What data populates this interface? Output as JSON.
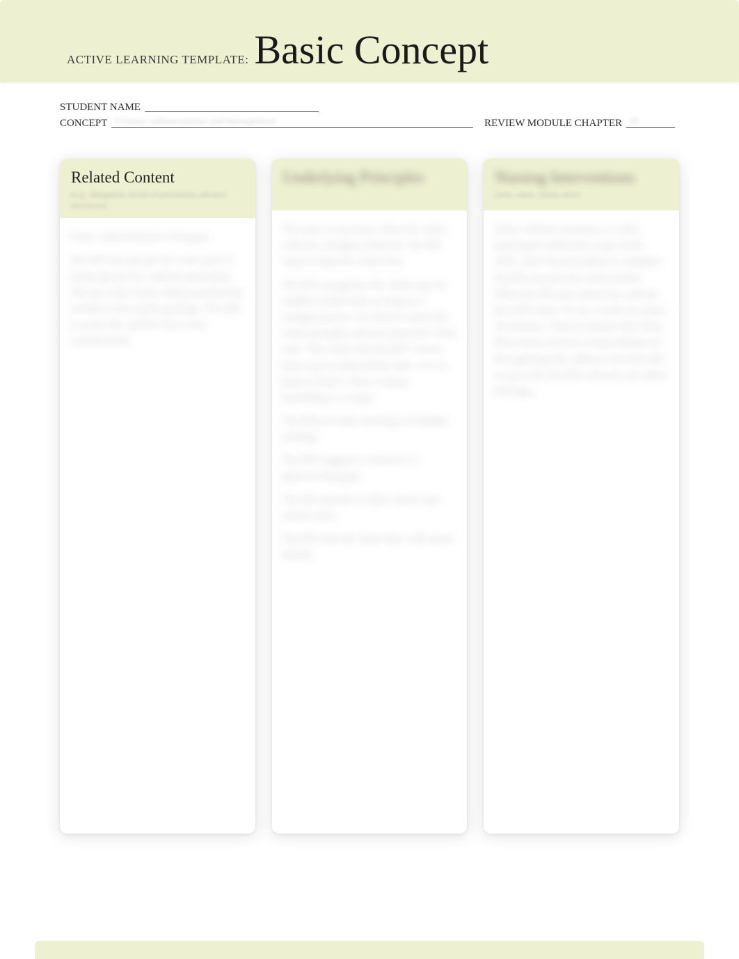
{
  "colors": {
    "band": "#eef0d2",
    "text": "#1a1a1a",
    "muted": "#3a3a3a",
    "line": "#444444",
    "card_bg": "#ffffff",
    "blur_text": "rgba(40,40,50,0.25)"
  },
  "header": {
    "prefix": "ACTIVE LEARNING TEMPLATE:",
    "title": "Basic Concept"
  },
  "meta": {
    "student_label": "STUDENT NAME",
    "student_value": "",
    "concept_label": "CONCEPT",
    "concept_value": "Urinary catheterization and management",
    "chapter_label": "REVIEW MODULE CHAPTER",
    "chapter_value": "45"
  },
  "cards": [
    {
      "title": "Related Content",
      "title_blurred": false,
      "subtitle": "(e.g., delegation, levels of prevention, advance directives)",
      "body": [
        "Foley catheterization technique.",
        "The RN has just put on a new pair of sterile gloves for catheter placement. The tip of the Foley tubing touched the outside of the sterile package. The RN is aware the catheter tip is now contaminated."
      ]
    },
    {
      "title": "Underlying Principles",
      "title_blurred": true,
      "subtitle": "",
      "body": [
        "The unit is very busy when the client calls for a bedpan; however, the RN stops to help the client first.",
        "The RN recognizes the client may be unable to hold urine as long as a younger person. It is best to assist the client promptly and not make the client wait. The client tells the RN 'I never had to go so often before this. It is so hard to hold it. Does it mean something is wrong?'",
        "The RN provides teaching on bladder training.",
        "The RN suggests a referral to a physical therapist.",
        "The RN attends to other clients and returns later.",
        "The RN tells the client they will return shortly."
      ]
    },
    {
      "title": "Nursing Interventions",
      "title_blurred": true,
      "subtitle": "(who, when, where, how)",
      "body": [
        "Foley catheter insertion is a skill performed within the scope of the LPN. After the procedure is complete, the RN assesses the client further. When the RN asks about the catheter, the LPN states 'It's in; it took me about 30 minutes. I had to reinsert the Foley three times because it kept falling out.' Recognizing the catheter insertion did not go well, the RN will next ask about drainage."
      ]
    }
  ]
}
